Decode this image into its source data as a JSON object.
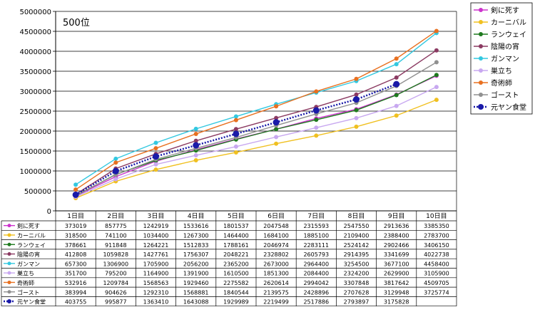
{
  "chart_data": {
    "type": "line",
    "title": "500位",
    "categories": [
      "1日目",
      "2日目",
      "3日目",
      "4日目",
      "5日目",
      "6日目",
      "7日目",
      "8日目",
      "9日目",
      "10日目"
    ],
    "ylim": [
      0,
      5000000
    ],
    "yticks": [
      0,
      500000,
      1000000,
      1500000,
      2000000,
      2500000,
      3000000,
      3500000,
      4000000,
      4500000,
      5000000
    ],
    "grid": true,
    "legend_position": "right",
    "data_table": true,
    "series": [
      {
        "name": "剣に死す",
        "color": "#cc33cc",
        "dotted": false,
        "values": [
          373019,
          857775,
          1242919,
          1533616,
          1801537,
          2047548,
          2315593,
          2547550,
          2913636,
          3385350
        ]
      },
      {
        "name": "カーニバル",
        "color": "#f0c020",
        "dotted": false,
        "values": [
          318500,
          741100,
          1034400,
          1267300,
          1464400,
          1684100,
          1885100,
          2109400,
          2388400,
          2783700
        ]
      },
      {
        "name": "ランウェイ",
        "color": "#1e7a1e",
        "dotted": false,
        "values": [
          378661,
          911848,
          1264221,
          1512833,
          1788161,
          2046974,
          2283111,
          2524142,
          2902466,
          3406150
        ]
      },
      {
        "name": "陰陽の宵",
        "color": "#8b3a62",
        "dotted": false,
        "values": [
          412808,
          1059828,
          1427761,
          1756307,
          2048221,
          2328802,
          2605793,
          2914395,
          3341699,
          4022738
        ]
      },
      {
        "name": "ガンマン",
        "color": "#33c8e0",
        "dotted": false,
        "values": [
          657300,
          1306900,
          1705900,
          2056200,
          2365200,
          2673000,
          2964400,
          3254500,
          3677100,
          4458400
        ]
      },
      {
        "name": "巣立ち",
        "color": "#c8a8f0",
        "dotted": false,
        "values": [
          351700,
          795200,
          1164900,
          1391900,
          1610500,
          1851300,
          2084400,
          2324200,
          2629900,
          3105900
        ]
      },
      {
        "name": "奇術師",
        "color": "#e87020",
        "dotted": false,
        "values": [
          532916,
          1209784,
          1568563,
          1929460,
          2275582,
          2620614,
          2994042,
          3307848,
          3817642,
          4509705
        ]
      },
      {
        "name": "ゴースト",
        "color": "#909090",
        "dotted": false,
        "values": [
          383994,
          904626,
          1292310,
          1568881,
          1840544,
          2139575,
          2428896,
          2707628,
          3129948,
          3725774
        ]
      },
      {
        "name": "元ヤン食堂",
        "color": "#1a1aa8",
        "dotted": true,
        "values": [
          403755,
          995877,
          1363410,
          1643088,
          1929989,
          2219499,
          2517886,
          2793897,
          3175828,
          null
        ]
      }
    ]
  }
}
